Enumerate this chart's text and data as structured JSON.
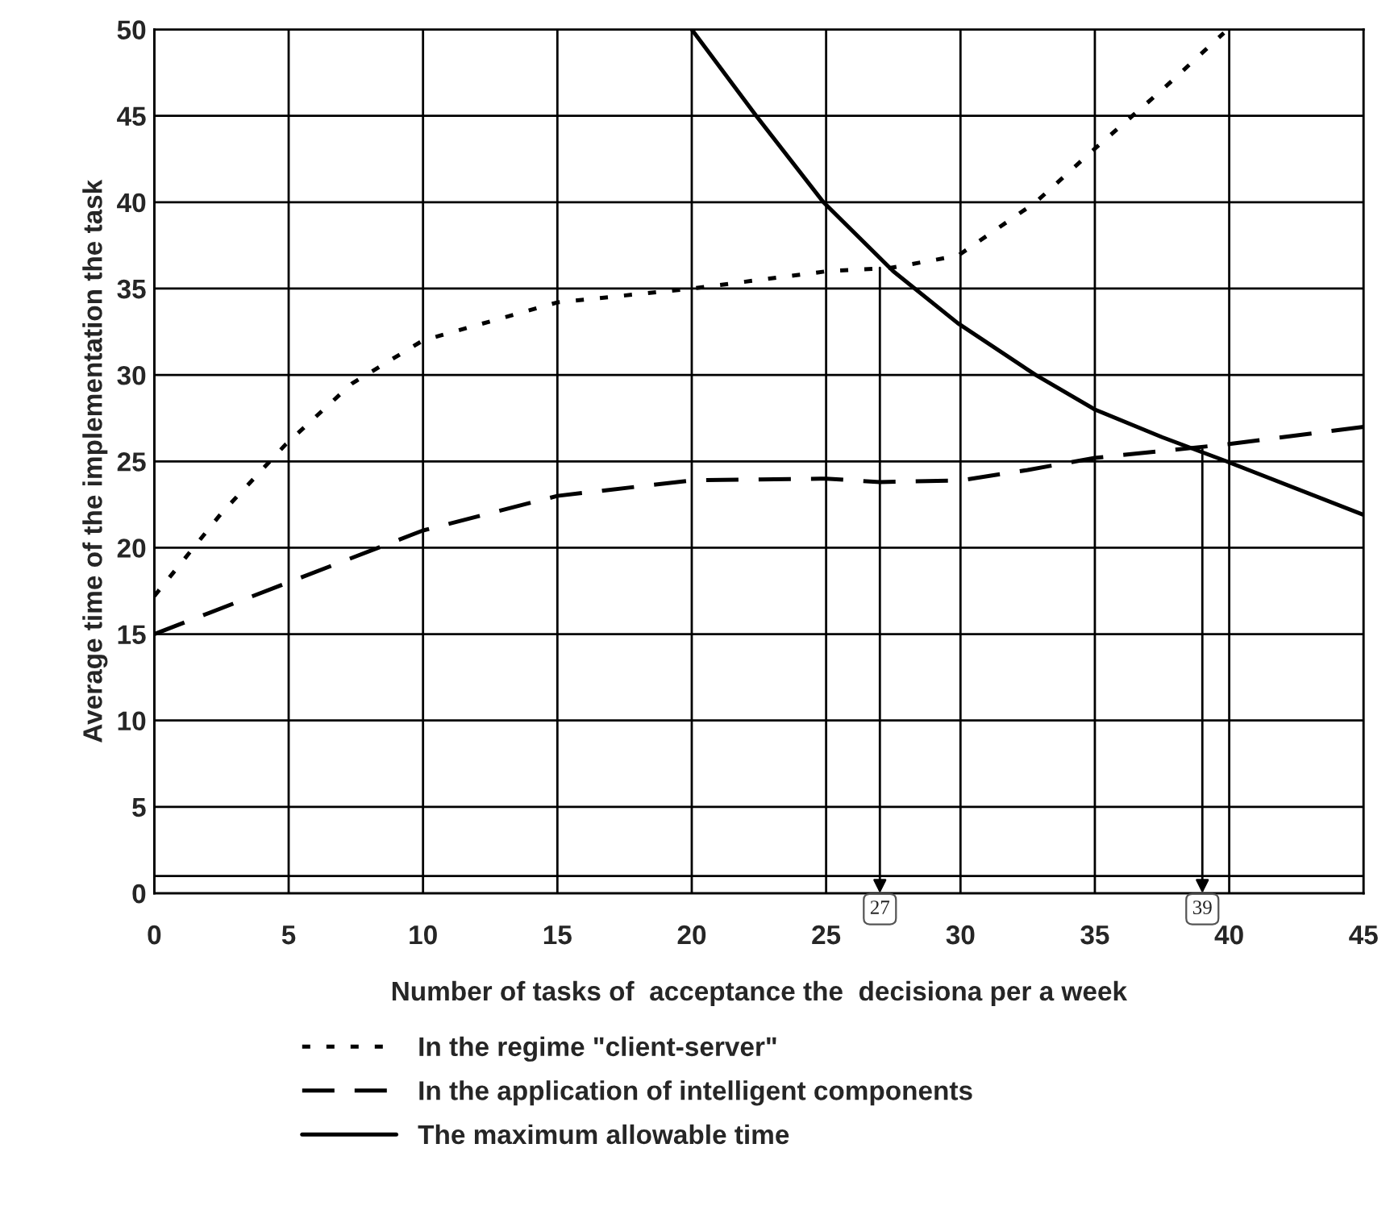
{
  "chart_data": {
    "type": "line",
    "xlabel": "Number of tasks of  acceptance the  decisiona per a week",
    "ylabel": "Average time of the implementation the task",
    "xlim": [
      0,
      45
    ],
    "xticks": [
      0,
      5,
      10,
      15,
      20,
      25,
      30,
      35,
      40,
      45
    ],
    "ylim": [
      0,
      50
    ],
    "yticks": [
      0,
      5,
      10,
      15,
      20,
      25,
      30,
      35,
      40,
      45,
      50
    ],
    "grid": true,
    "legend": "bottom",
    "marker": "none",
    "series": [
      {
        "name": "In the regime \"client-server\"",
        "color": "#000000",
        "line_style": "dotted",
        "x": [
          0,
          2.5,
          4.9,
          7.35,
          10,
          15,
          20,
          25,
          27.4,
          29.9,
          32.8,
          35,
          37.5,
          39.8
        ],
        "values": [
          17.2,
          22,
          26,
          29.5,
          32,
          34.2,
          35,
          36,
          36.2,
          36.9,
          40,
          43.1,
          46.5,
          49.8
        ]
      },
      {
        "name": "In the application of intelligent components",
        "color": "#000000",
        "line_style": "dashed",
        "x": [
          0,
          5,
          10,
          15,
          20,
          25,
          27,
          30,
          32.5,
          35,
          40,
          45
        ],
        "values": [
          15,
          18,
          21,
          23,
          23.9,
          24,
          23.8,
          23.9,
          24.5,
          25.2,
          26,
          27
        ]
      },
      {
        "name": "The maximum allowable time",
        "color": "#000000",
        "line_style": "solid",
        "x": [
          20,
          22.4,
          24.9,
          27.5,
          29.9,
          32.8,
          35,
          37.5,
          39.9,
          45
        ],
        "values": [
          50,
          45,
          40,
          36,
          33,
          30,
          28,
          26.4,
          25,
          21.9
        ]
      }
    ],
    "ref_lines": [
      {
        "axis": "y",
        "value": 1,
        "label": null,
        "color": "#000000",
        "line_style": "solid"
      }
    ],
    "annotations": [
      {
        "text": "27",
        "x": 27,
        "y": 36.2
      },
      {
        "text": "39",
        "x": 39,
        "y": 25.7
      }
    ]
  }
}
